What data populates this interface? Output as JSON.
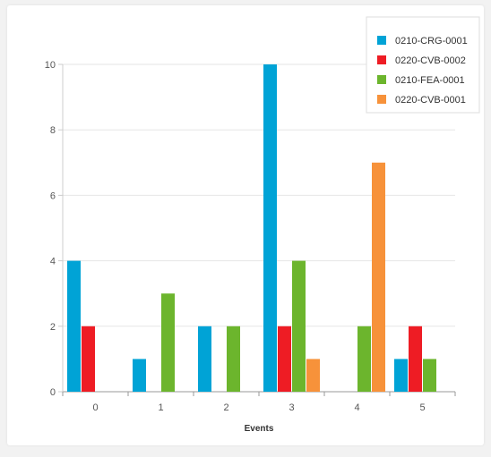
{
  "chart_data": {
    "type": "bar",
    "title": "",
    "xlabel": "Events",
    "ylabel": "",
    "categories": [
      "0",
      "1",
      "2",
      "3",
      "4",
      "5"
    ],
    "ylim": [
      0,
      10
    ],
    "yticks": [
      0,
      2,
      4,
      6,
      8,
      10
    ],
    "grid": "horizontal",
    "legend_position": "top-right",
    "series": [
      {
        "name": "0210-CRG-0001",
        "color": "#00a3d6",
        "values": [
          4,
          1,
          2,
          10,
          0,
          1
        ]
      },
      {
        "name": "0220-CVB-0002",
        "color": "#ee1c24",
        "values": [
          2,
          0,
          0,
          2,
          0,
          2
        ]
      },
      {
        "name": "0210-FEA-0001",
        "color": "#6cb52d",
        "values": [
          0,
          3,
          2,
          4,
          2,
          1
        ]
      },
      {
        "name": "0220-CVB-0001",
        "color": "#f7923a",
        "values": [
          0,
          0,
          0,
          1,
          7,
          0
        ]
      }
    ]
  }
}
